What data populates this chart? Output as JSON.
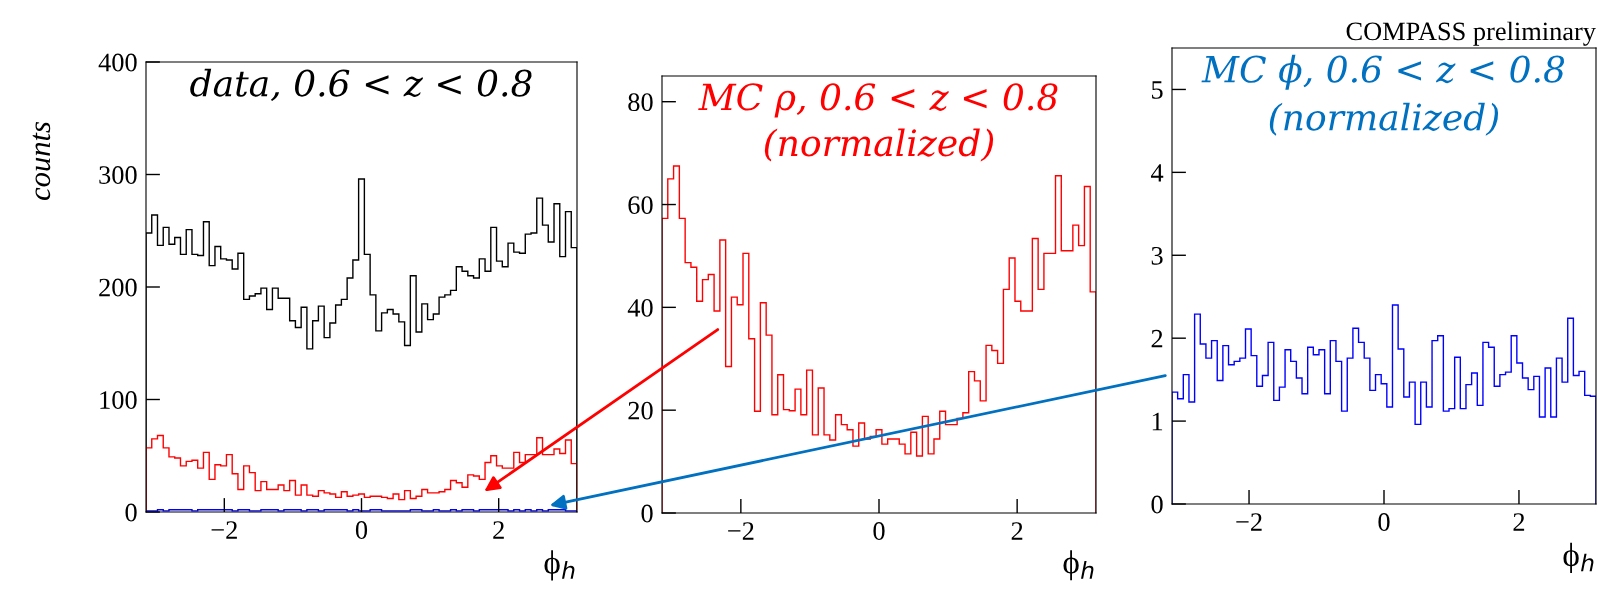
{
  "chart_data": [
    {
      "type": "histogram",
      "title": "data, 0.6 < z < 0.8",
      "ylabel": "counts",
      "xlabel": "ϕ$_{h}$",
      "bins": [
        -3.1416,
        -3.0578,
        -2.974,
        -2.8903,
        -2.8065,
        -2.7227,
        -2.6389,
        -2.5552,
        -2.4714,
        -2.3876,
        -2.3038,
        -2.2201,
        -2.1363,
        -2.0525,
        -1.9687,
        -1.885,
        -1.8012,
        -1.7174,
        -1.6336,
        -1.5499,
        -1.4661,
        -1.3823,
        -1.2985,
        -1.2148,
        -1.131,
        -1.0472,
        -0.9634,
        -0.8796,
        -0.7959,
        -0.7121,
        -0.6283,
        -0.5445,
        -0.4608,
        -0.377,
        -0.2932,
        -0.2094,
        -0.1257,
        -0.0419,
        0.0419,
        0.1257,
        0.2094,
        0.2932,
        0.377,
        0.4608,
        0.5445,
        0.6283,
        0.7121,
        0.7959,
        0.8796,
        0.9634,
        1.0472,
        1.131,
        1.2148,
        1.2985,
        1.3823,
        1.4661,
        1.5499,
        1.6336,
        1.7174,
        1.8012,
        1.885,
        1.9687,
        2.0525,
        2.1363,
        2.2201,
        2.3038,
        2.3876,
        2.4714,
        2.5552,
        2.6389,
        2.7227,
        2.8065,
        2.8903,
        2.974,
        3.0578,
        3.1416
      ],
      "series": [
        {
          "color": "#000000",
          "values": [
            248,
            264,
            237,
            253,
            238,
            244,
            229,
            251,
            229,
            228,
            258,
            219,
            236,
            225,
            224,
            216,
            230,
            189,
            192,
            194,
            199,
            180,
            199,
            190,
            190,
            170,
            164,
            182,
            145,
            170,
            183,
            155,
            168,
            184,
            189,
            208,
            224,
            296,
            229,
            193,
            161,
            177,
            180,
            176,
            169,
            148,
            210,
            160,
            185,
            171,
            176,
            191,
            193,
            197,
            218,
            214,
            210,
            208,
            225,
            214,
            253,
            223,
            218,
            239,
            231,
            230,
            247,
            248,
            279,
            255,
            240,
            274,
            227,
            267,
            235
          ]
        },
        {
          "color": "#ff0000",
          "values": [
            57,
            65,
            68,
            57,
            49,
            48,
            41,
            45,
            46,
            39,
            53,
            29,
            42,
            41,
            51,
            34,
            20,
            41,
            35,
            19,
            27,
            20,
            20,
            24,
            19,
            28,
            15,
            24,
            15,
            14,
            19,
            17,
            16,
            13,
            18,
            14,
            15,
            16,
            13,
            14,
            14,
            13,
            12,
            16,
            11,
            19,
            12,
            14,
            20,
            17,
            17,
            18,
            20,
            28,
            26,
            22,
            33,
            32,
            29,
            44,
            50,
            41,
            39,
            39,
            53,
            44,
            51,
            51,
            66,
            51,
            51,
            56,
            52,
            64,
            43
          ]
        },
        {
          "color": "#0000ff",
          "values": [
            1,
            1,
            2,
            1,
            2,
            2,
            2,
            2,
            1,
            2,
            2,
            2,
            2,
            2,
            2,
            1,
            2,
            2,
            1,
            1,
            2,
            2,
            2,
            1,
            2,
            2,
            2,
            1,
            2,
            2,
            1,
            2,
            2,
            2,
            2,
            1,
            2,
            1,
            1,
            2,
            2,
            1,
            1,
            1,
            1,
            1,
            2,
            2,
            1,
            1,
            2,
            1,
            1,
            2,
            1,
            2,
            2,
            1,
            2,
            2,
            2,
            2,
            2,
            1,
            2,
            1,
            2,
            1,
            2,
            1,
            2,
            2,
            2,
            1,
            1
          ]
        }
      ],
      "xlim": [
        -3.1416,
        3.1416
      ],
      "xticks": [
        -2,
        0,
        2
      ],
      "ylim": [
        0,
        400
      ],
      "yticks": [
        0,
        100,
        200,
        300,
        400
      ]
    },
    {
      "type": "histogram",
      "title": "MC ρ, 0.6 < z < 0.8",
      "subtitle": "(normalized)",
      "xlabel": "ϕ$_{h}$",
      "bins": [
        -3.1416,
        -3.0578,
        -2.974,
        -2.8903,
        -2.8065,
        -2.7227,
        -2.6389,
        -2.5552,
        -2.4714,
        -2.3876,
        -2.3038,
        -2.2201,
        -2.1363,
        -2.0525,
        -1.9687,
        -1.885,
        -1.8012,
        -1.7174,
        -1.6336,
        -1.5499,
        -1.4661,
        -1.3823,
        -1.2985,
        -1.2148,
        -1.131,
        -1.0472,
        -0.9634,
        -0.8796,
        -0.7959,
        -0.7121,
        -0.6283,
        -0.5445,
        -0.4608,
        -0.377,
        -0.2932,
        -0.2094,
        -0.1257,
        -0.0419,
        0.0419,
        0.1257,
        0.2094,
        0.2932,
        0.377,
        0.4608,
        0.5445,
        0.6283,
        0.7121,
        0.7959,
        0.8796,
        0.9634,
        1.0472,
        1.131,
        1.2148,
        1.2985,
        1.3823,
        1.4661,
        1.5499,
        1.6336,
        1.7174,
        1.8012,
        1.885,
        1.9687,
        2.0525,
        2.1363,
        2.2201,
        2.3038,
        2.3876,
        2.4714,
        2.5552,
        2.6389,
        2.7227,
        2.8065,
        2.8903,
        2.974,
        3.0578,
        3.1416
      ],
      "series": [
        {
          "color": "#ff0000",
          "values": [
            57.3,
            65,
            67.5,
            57.3,
            48.7,
            47.8,
            41.2,
            45.4,
            46.4,
            39.3,
            53.1,
            28.5,
            42,
            40.5,
            50.5,
            33.9,
            19.8,
            40.9,
            34.6,
            19.1,
            26.9,
            20.1,
            19.9,
            24.1,
            19.1,
            27.8,
            15.2,
            24.3,
            15.2,
            14.2,
            19.1,
            17.2,
            16.2,
            13,
            17.5,
            14.4,
            14.9,
            16.2,
            13.4,
            14.4,
            14.4,
            13.4,
            11.5,
            15.7,
            11.1,
            18.8,
            11.5,
            14.4,
            19.8,
            17.2,
            17.2,
            18.4,
            19.5,
            27.5,
            25.7,
            21.8,
            32.6,
            31.6,
            29.1,
            43.5,
            49.6,
            41.2,
            39.3,
            39.3,
            53.4,
            43.5,
            50.5,
            50.5,
            65.6,
            51,
            51,
            56,
            52,
            63.5,
            43
          ]
        }
      ],
      "xlim": [
        -3.1416,
        3.1416
      ],
      "xticks": [
        -2,
        0,
        2
      ],
      "ylim": [
        0,
        85
      ],
      "yticks": [
        0,
        20,
        40,
        60,
        80
      ]
    },
    {
      "type": "histogram",
      "title": "MC ϕ, 0.6 < z < 0.8",
      "subtitle": "(normalized)",
      "xlabel": "ϕ$_{h}$",
      "annotations": [
        "COMPASS preliminary"
      ],
      "bins": [
        -3.1416,
        -3.0578,
        -2.974,
        -2.8903,
        -2.8065,
        -2.7227,
        -2.6389,
        -2.5552,
        -2.4714,
        -2.3876,
        -2.3038,
        -2.2201,
        -2.1363,
        -2.0525,
        -1.9687,
        -1.885,
        -1.8012,
        -1.7174,
        -1.6336,
        -1.5499,
        -1.4661,
        -1.3823,
        -1.2985,
        -1.2148,
        -1.131,
        -1.0472,
        -0.9634,
        -0.8796,
        -0.7959,
        -0.7121,
        -0.6283,
        -0.5445,
        -0.4608,
        -0.377,
        -0.2932,
        -0.2094,
        -0.1257,
        -0.0419,
        0.0419,
        0.1257,
        0.2094,
        0.2932,
        0.377,
        0.4608,
        0.5445,
        0.6283,
        0.7121,
        0.7959,
        0.8796,
        0.9634,
        1.0472,
        1.131,
        1.2148,
        1.2985,
        1.3823,
        1.4661,
        1.5499,
        1.6336,
        1.7174,
        1.8012,
        1.885,
        1.9687,
        2.0525,
        2.1363,
        2.2201,
        2.3038,
        2.3876,
        2.4714,
        2.5552,
        2.6389,
        2.7227,
        2.8065,
        2.8903,
        2.974,
        3.0578,
        3.1416
      ],
      "series": [
        {
          "color": "#0000ff",
          "values": [
            1.35,
            1.27,
            1.56,
            1.23,
            2.29,
            1.93,
            1.76,
            1.97,
            1.49,
            1.91,
            1.68,
            1.72,
            1.76,
            2.11,
            1.79,
            1.42,
            1.55,
            1.95,
            1.25,
            1.41,
            1.86,
            1.72,
            1.52,
            1.33,
            1.89,
            1.8,
            1.86,
            1.33,
            1.97,
            1.72,
            1.12,
            1.76,
            2.12,
            1.95,
            1.76,
            1.37,
            1.56,
            1.45,
            1.17,
            2.4,
            1.87,
            1.29,
            1.47,
            0.96,
            1.47,
            1.17,
            1.97,
            2.03,
            1.12,
            1.15,
            1.77,
            1.15,
            1.44,
            1.58,
            1.19,
            1.95,
            1.89,
            1.42,
            1.56,
            1.59,
            2.03,
            1.7,
            1.52,
            1.38,
            1.54,
            1.05,
            1.64,
            1.05,
            1.76,
            1.47,
            2.24,
            1.55,
            1.6,
            1.31,
            1.3
          ]
        }
      ],
      "xlim": [
        -3.1416,
        3.1416
      ],
      "xticks": [
        -2,
        0,
        2
      ],
      "ylim": [
        0,
        5.5
      ],
      "yticks": [
        0,
        1,
        2,
        3,
        4,
        5
      ]
    }
  ]
}
